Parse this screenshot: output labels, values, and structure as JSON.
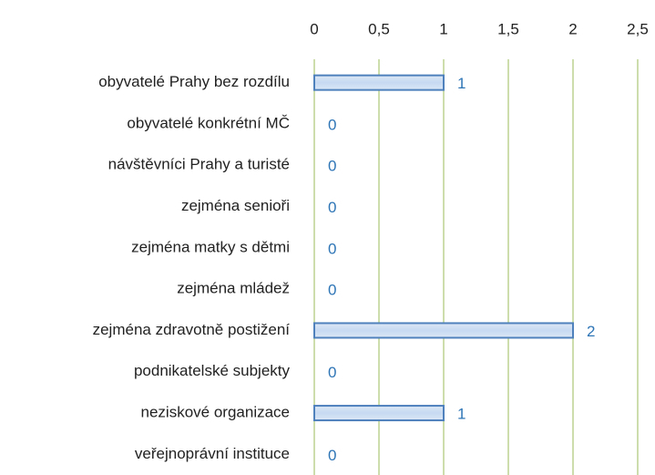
{
  "chart_data": {
    "type": "bar",
    "orientation": "horizontal",
    "categories": [
      "obyvatelé Prahy bez rozdílu",
      "obyvatelé konkrétní MČ",
      "návštěvníci Prahy a turisté",
      "zejména senioři",
      "zejména matky s dětmi",
      "zejména mládež",
      "zejména zdravotně postižení",
      "podnikatelské subjekty",
      "neziskové organizace",
      "veřejnoprávní instituce"
    ],
    "values": [
      1,
      0,
      0,
      0,
      0,
      0,
      2,
      0,
      1,
      0
    ],
    "color": "#4f81bd",
    "grid_color": "#9bbb59",
    "label_color": "#2e75b6",
    "xlim": [
      0,
      2.5
    ],
    "xticks": [
      0,
      {
        "value": 0.5,
        "label": "0,5"
      },
      1,
      {
        "value": 1.5,
        "label": "1,5"
      },
      2,
      {
        "value": 2.5,
        "label": "2,5"
      }
    ],
    "grid": true
  }
}
